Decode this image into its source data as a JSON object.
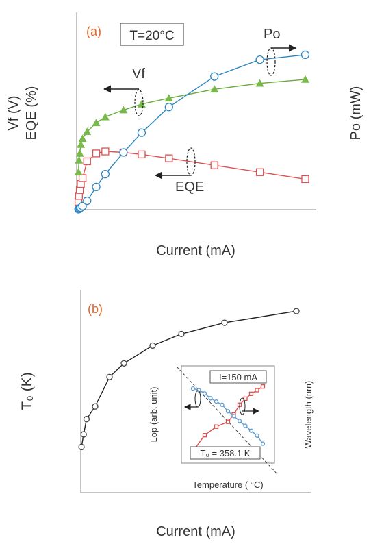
{
  "chart_data": [
    {
      "type": "line",
      "panel_label": "(a)",
      "condition": "T=20°C",
      "xlabel": "Current (mA)",
      "ylabel_left_line1": "Vf (V)",
      "ylabel_left_line2": "EQE (%)",
      "ylabel_right": "Po (mW)",
      "xlim": [
        0,
        250
      ],
      "ylim_left": [
        0,
        10
      ],
      "ylim_right": [
        0,
        10
      ],
      "x_ticks": [
        "0",
        "50",
        "100",
        "150",
        "200",
        "250"
      ],
      "y_ticks_left": [
        "0",
        "2",
        "4",
        "6",
        "8",
        "10"
      ],
      "y_ticks_right": [
        "0",
        "2",
        "4",
        "6",
        "8",
        "10"
      ],
      "annotations": {
        "po": "Po",
        "vf": "Vf",
        "eqe": "EQE"
      },
      "colors": {
        "vf": "#6aaa3a",
        "vf_marker": "#79b84a",
        "po": "#2e86c1",
        "eqe": "#e05050",
        "label": "#e8642a"
      },
      "series": [
        {
          "name": "Vf",
          "axis": "left",
          "marker": "triangle",
          "x": [
            0.5,
            1,
            2,
            3,
            5,
            10,
            20,
            30,
            50,
            70,
            100,
            150,
            200,
            250
          ],
          "y": [
            1.9,
            2.5,
            2.85,
            3.3,
            3.6,
            3.95,
            4.4,
            4.7,
            5.05,
            5.35,
            5.65,
            6.1,
            6.4,
            6.6
          ]
        },
        {
          "name": "Po",
          "axis": "right",
          "marker": "circle",
          "x": [
            0.5,
            1,
            2,
            3,
            5,
            10,
            20,
            30,
            50,
            70,
            100,
            150,
            200,
            250
          ],
          "y": [
            0.02,
            0.04,
            0.07,
            0.1,
            0.18,
            0.45,
            1.15,
            1.8,
            2.9,
            3.9,
            5.2,
            6.75,
            7.6,
            7.85
          ]
        },
        {
          "name": "EQE",
          "axis": "left",
          "marker": "square",
          "x": [
            0.5,
            1,
            2,
            3,
            5,
            10,
            20,
            30,
            50,
            70,
            100,
            150,
            200,
            250
          ],
          "y": [
            0.4,
            0.7,
            1.0,
            1.3,
            1.6,
            2.45,
            2.85,
            2.95,
            2.9,
            2.8,
            2.6,
            2.25,
            1.9,
            1.55
          ]
        }
      ]
    },
    {
      "type": "line",
      "panel_label": "(b)",
      "xlabel": "Current (mA)",
      "ylabel": "T₀ (K)",
      "xlim": [
        0,
        160
      ],
      "ylim": [
        0,
        400
      ],
      "x_ticks": [
        "0",
        "20",
        "40",
        "60",
        "80",
        "100",
        "120",
        "140",
        "160"
      ],
      "y_ticks": [
        "0",
        "50",
        "100",
        "150",
        "200",
        "250",
        "300",
        "350",
        "400"
      ],
      "series": [
        {
          "marker": "circle",
          "x": [
            0.5,
            2,
            4,
            10,
            20,
            30,
            50,
            70,
            100,
            150
          ],
          "y": [
            90,
            115,
            145,
            170,
            228,
            255,
            290,
            313,
            335,
            358
          ]
        }
      ],
      "inset": {
        "xlabel": "Temperature ( °C)",
        "ylabel_left": "Lop (arb. unit)",
        "ylabel_right": "Wavelength (nm)",
        "condition": "I=150 mA",
        "t0_label": "T₀ = 358.1 K",
        "xlim": [
          -60,
          100
        ],
        "ylim_left": [
          0.7,
          1.3
        ],
        "ylim_right": [
          603,
          611
        ],
        "x_ticks": [
          "-60",
          "-20",
          "20",
          "60",
          "100"
        ],
        "y_ticks_left": [
          "0.7",
          "0.9",
          "1.1",
          "1.3"
        ],
        "y_ticks_right": [
          "603",
          "605",
          "607",
          "609",
          "611"
        ],
        "series": [
          {
            "axis": "left",
            "marker": "circle",
            "color": "#5b9bd5",
            "x": [
              -40,
              -30,
              -20,
              -10,
              0,
              10,
              20,
              30,
              40,
              50,
              60,
              70,
              80
            ],
            "y": [
              1.16,
              1.15,
              1.13,
              1.1,
              1.08,
              1.06,
              1.02,
              0.99,
              0.96,
              0.93,
              0.9,
              0.87,
              0.82
            ]
          },
          {
            "axis": "right",
            "marker": "square",
            "color": "#e05050",
            "x": [
              -40,
              -20,
              0,
              20,
              30,
              40,
              50,
              60,
              70,
              80
            ],
            "y": [
              604.0,
              605.3,
              606.0,
              606.4,
              607.0,
              607.8,
              608.3,
              608.7,
              609.0,
              609.3
            ]
          }
        ]
      }
    }
  ]
}
